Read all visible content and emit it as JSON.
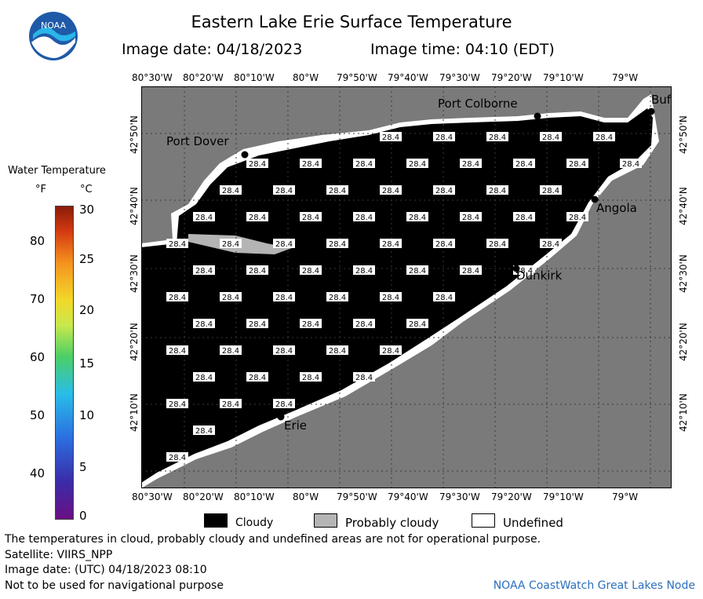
{
  "header": {
    "title": "Eastern Lake Erie Surface Temperature",
    "image_date": "Image date: 04/18/2023",
    "image_time": "Image time: 04:10 (EDT)"
  },
  "logo": {
    "icon": "noaa-logo-icon",
    "text": "NOAA"
  },
  "map": {
    "lon_labels": [
      "80°30'W",
      "80°20'W",
      "80°10'W",
      "80°W",
      "79°50'W",
      "79°40'W",
      "79°30'W",
      "79°20'W",
      "79°10'W",
      "79°W"
    ],
    "lat_labels": [
      "42°50'N",
      "42°40'N",
      "42°30'N",
      "42°20'N",
      "42°10'N"
    ],
    "cities": [
      "Port Dover",
      "Port Colborne",
      "Buf",
      "Angola",
      "Dunkirk",
      "Erie"
    ],
    "temperature_value": "28.4",
    "colors": {
      "cloud": "#000000",
      "probably_cloudy": "#b4b4b4",
      "land": "#7a7a7a",
      "undefined": "#ffffff"
    }
  },
  "legend": {
    "title": "Water Temperature",
    "unit_f": "°F",
    "unit_c": "°C",
    "f_ticks": [
      "80",
      "70",
      "60",
      "50",
      "40"
    ],
    "c_ticks": [
      "30",
      "25",
      "20",
      "15",
      "10",
      "5",
      "0"
    ],
    "categories": [
      "Cloudy",
      "Probably cloudy",
      "Undefined"
    ]
  },
  "footer": {
    "disclaimer": "The temperatures in cloud, probably cloudy and undefined areas are not for operational purpose.",
    "satellite": "Satellite: VIIRS_NPP",
    "utc_date": "Image date: (UTC) 04/18/2023  08:10",
    "nav_warning": "Not to be used for navigational purpose",
    "credit": "NOAA CoastWatch Great Lakes Node"
  }
}
